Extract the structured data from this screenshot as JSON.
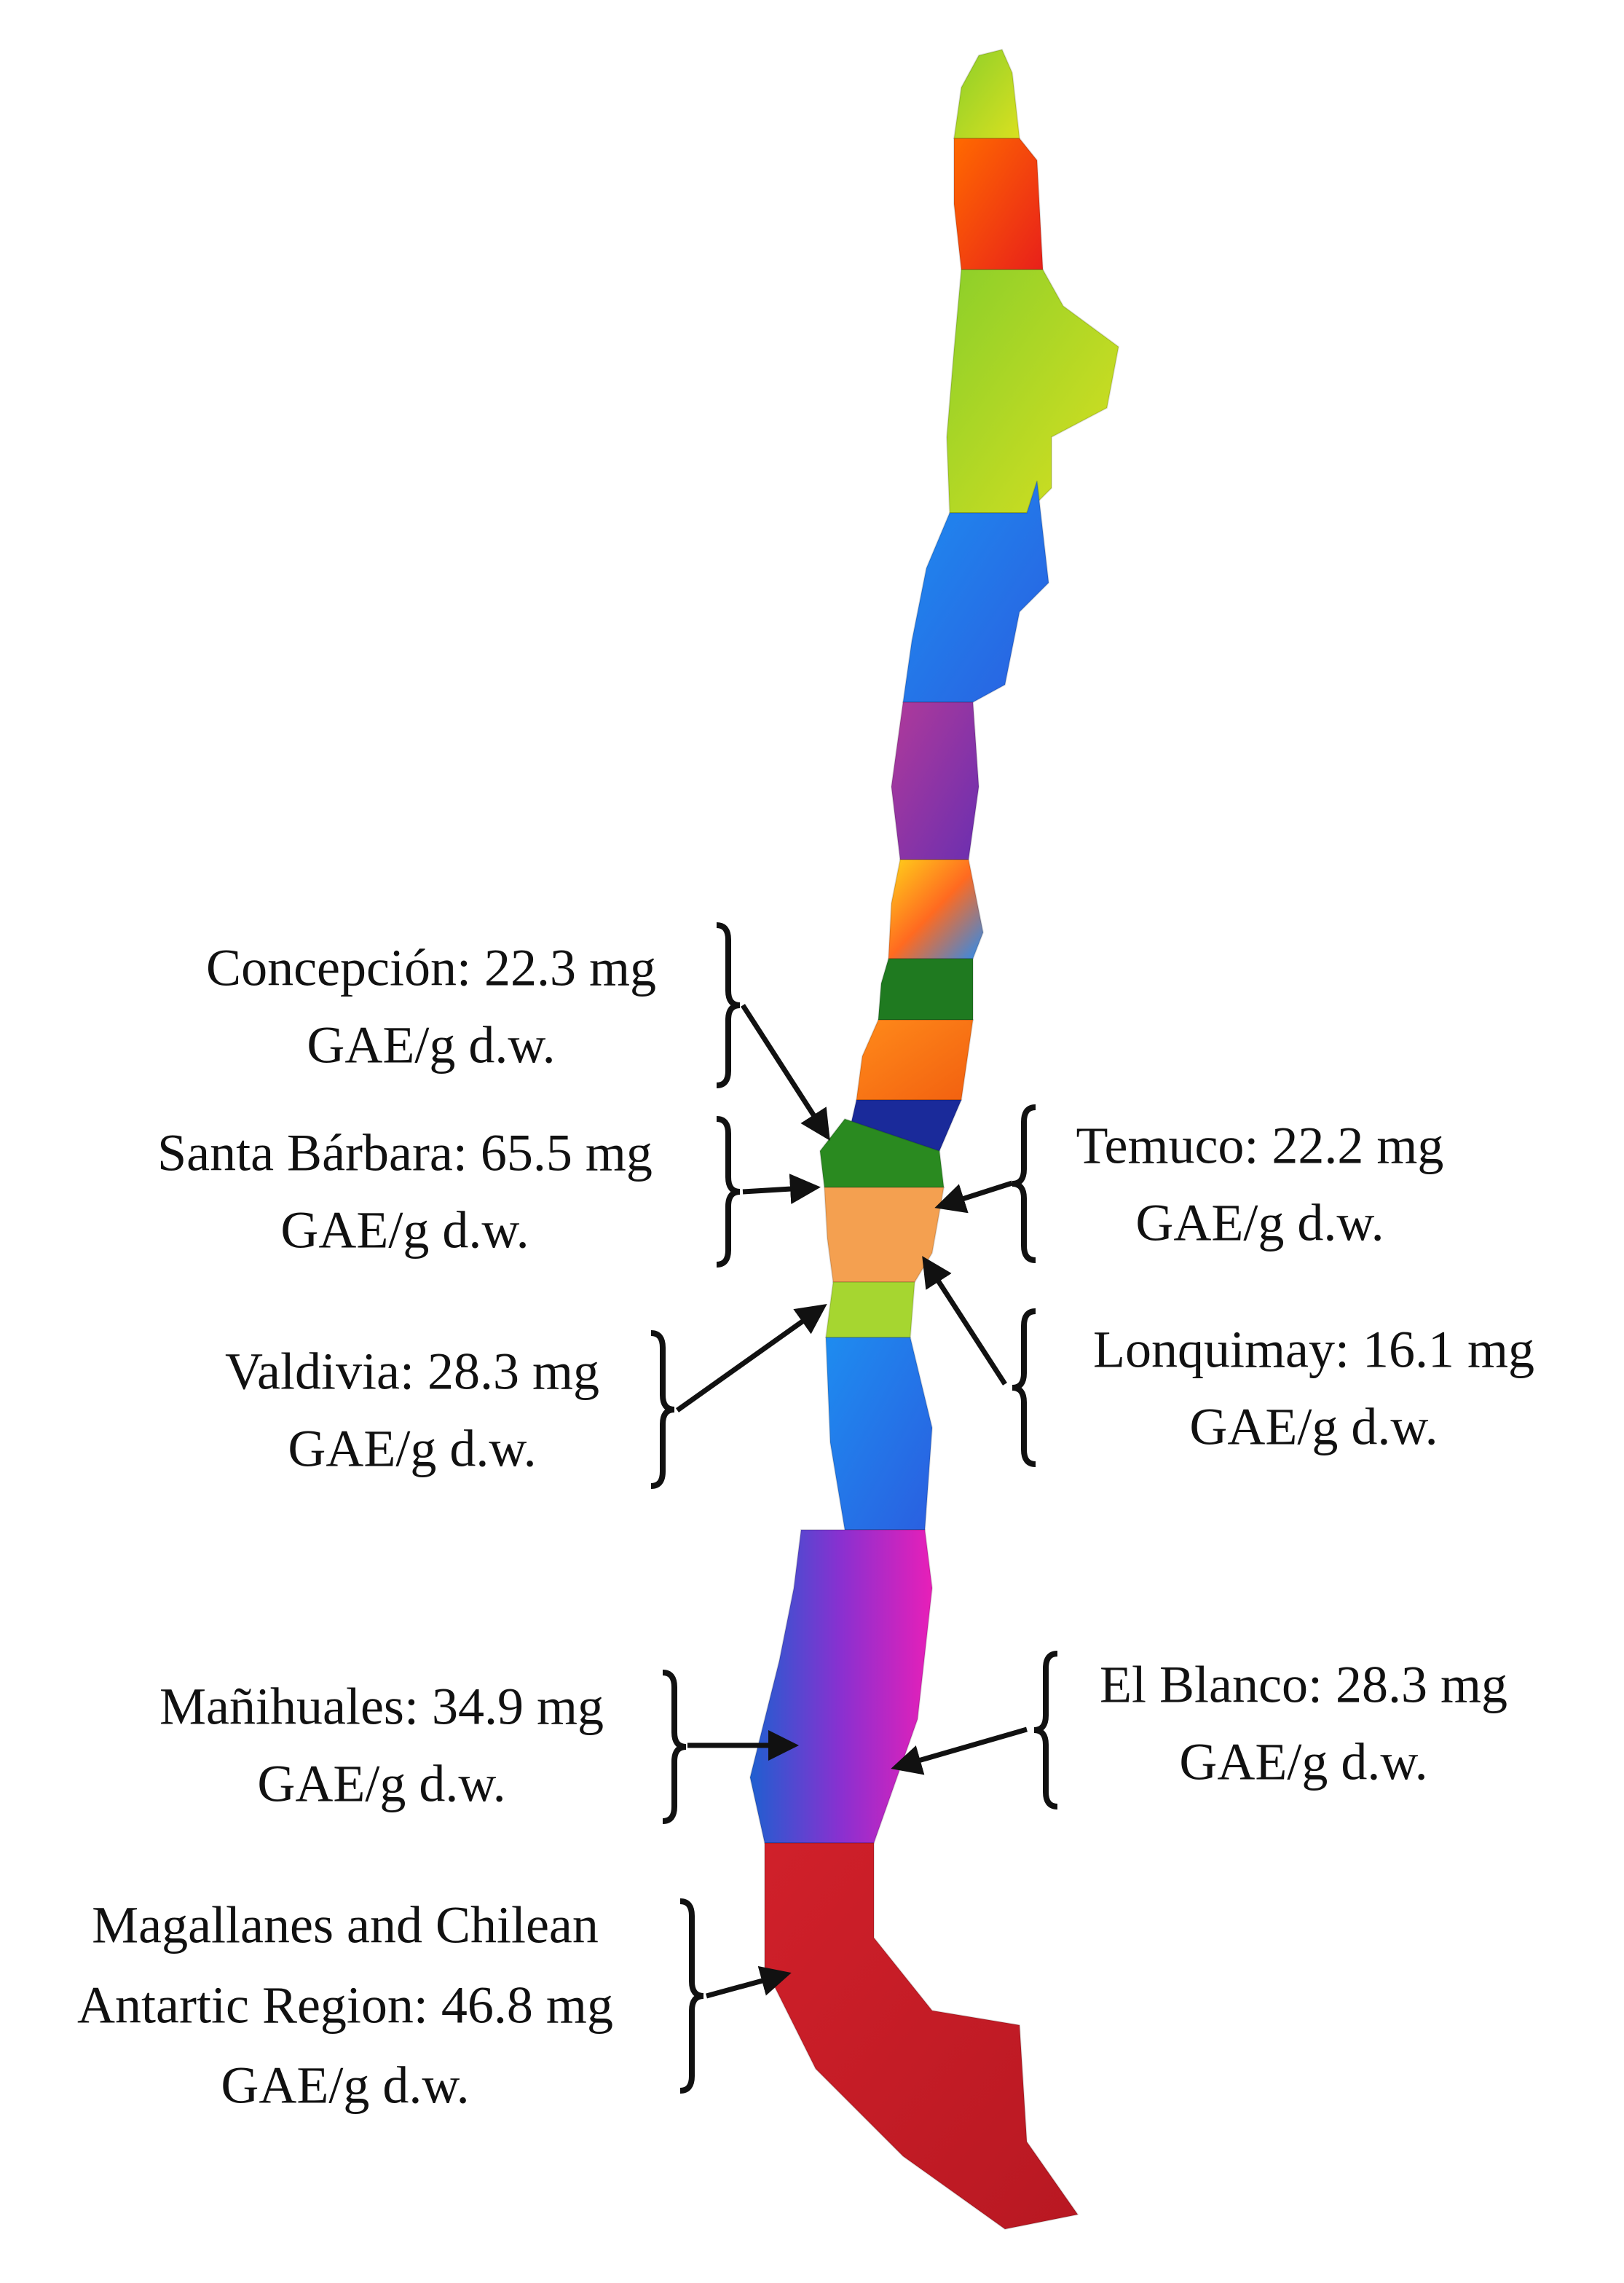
{
  "labels": [
    {
      "lines": [
        "Concepción: 22.3  mg",
        "GAE/g d.w."
      ]
    },
    {
      "lines": [
        "Santa Bárbara: 65.5  mg",
        "GAE/g d.w."
      ]
    },
    {
      "lines": [
        "Valdivia: 28.3  mg",
        "GAE/g d.w."
      ]
    },
    {
      "lines": [
        "Mañihuales: 34.9  mg",
        "GAE/g d.w."
      ]
    },
    {
      "lines": [
        "Magallanes and Chilean",
        "Antartic Region: 46.8  mg",
        "GAE/g d.w."
      ]
    },
    {
      "lines": [
        "Temuco: 22.2  mg",
        "GAE/g d.w."
      ]
    },
    {
      "lines": [
        "Lonquimay: 16.1  mg",
        "GAE/g d.w."
      ]
    },
    {
      "lines": [
        "El Blanco: 28.3  mg",
        "GAE/g d.w."
      ]
    }
  ]
}
